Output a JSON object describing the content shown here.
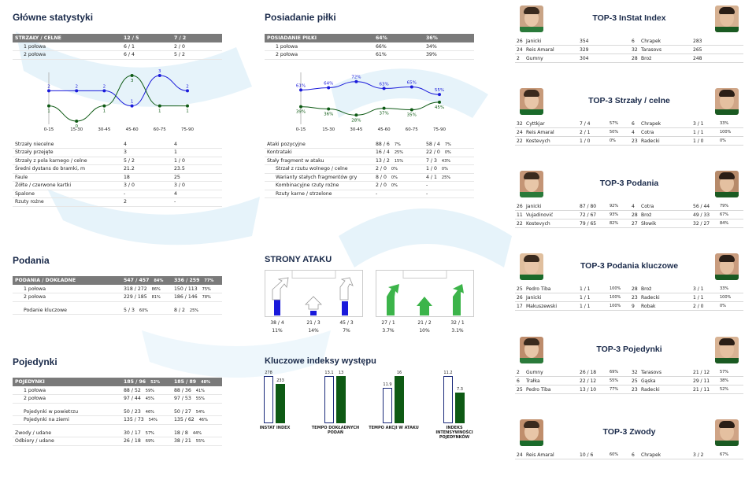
{
  "colors": {
    "header": "#7a7a7a",
    "blue": "#1a1adb",
    "green": "#0e5a14",
    "title": "#1a2a4a",
    "bg_shape": "#dff0f8"
  },
  "main": {
    "title": "Główne statystyki",
    "head": [
      "STRZAŁY / CELNE",
      "12 / 5",
      "7 / 2"
    ],
    "rows": [
      [
        "1 połowa",
        "6 / 1",
        "2 / 0"
      ],
      [
        "2 połowa",
        "6 / 4",
        "5 / 2"
      ]
    ],
    "chart_x": [
      "0-15",
      "15-30",
      "30-45",
      "45-60",
      "60-75",
      "75-90"
    ],
    "rows2": [
      [
        "Strzały niecelne",
        "4",
        "4"
      ],
      [
        "Strzały przejęte",
        "3",
        "1"
      ],
      [
        "Strzały z pola karnego / celne",
        "5 / 2",
        "1 / 0"
      ],
      [
        "Średni dystans do bramki, m",
        "21.2",
        "23.5"
      ],
      [
        "Faule",
        "18",
        "25"
      ],
      [
        "Żółte / czerwone kartki",
        "3 / 0",
        "3 / 0"
      ],
      [
        "Spalone",
        "-",
        "4"
      ],
      [
        "Rzuty rożne",
        "2",
        "-"
      ]
    ]
  },
  "posiadanie": {
    "title": "Posiadanie piłki",
    "head": [
      "POSIADANIE PIŁKI",
      "64%",
      "36%"
    ],
    "rows": [
      [
        "1 połowa",
        "66%",
        "34%"
      ],
      [
        "2 połowa",
        "61%",
        "39%"
      ]
    ],
    "chart_x": [
      "0-15",
      "15-30",
      "30-45",
      "45-60",
      "60-75",
      "75-90"
    ],
    "rows2": [
      [
        "Ataki pozycyjne",
        "88 / 6",
        "7%",
        "58 / 4",
        "7%"
      ],
      [
        "Kontrataki",
        "16 / 4",
        "25%",
        "22 / 0",
        "0%"
      ],
      [
        "Stały fragment w ataku",
        "13 / 2",
        "15%",
        "7 / 3",
        "43%"
      ],
      [
        "Strzał z rzutu wolnego / celne",
        "2 / 0",
        "0%",
        "1 / 0",
        "0%"
      ],
      [
        "Warianty stałych fragmentów gry",
        "8 / 0",
        "0%",
        "4 / 1",
        "25%"
      ],
      [
        "Kombinacyjne rzuty rożne",
        "2 / 0",
        "0%",
        "-",
        ""
      ],
      [
        "Rzuty karne / strzelone",
        "-",
        "",
        "-",
        ""
      ]
    ]
  },
  "podania": {
    "title": "Podania",
    "head": [
      "PODANIA / DOKŁADNE",
      "547 / 457",
      "84%",
      "336 / 259",
      "77%"
    ],
    "rows": [
      [
        "1 połowa",
        "318 / 272",
        "86%",
        "150 / 113",
        "75%"
      ],
      [
        "2 połowa",
        "229 / 185",
        "81%",
        "186 / 146",
        "78%"
      ],
      [
        "Podanie kluczowe",
        "5 / 3",
        "60%",
        "8 / 2",
        "25%"
      ]
    ]
  },
  "pojedynki": {
    "title": "Pojedynki",
    "head": [
      "POJEDYNKI",
      "185 / 96",
      "52%",
      "185 / 89",
      "48%"
    ],
    "rows": [
      [
        "1 połowa",
        "88 / 52",
        "59%",
        "88 / 36",
        "41%"
      ],
      [
        "2 połowa",
        "97 / 44",
        "45%",
        "97 / 53",
        "55%"
      ],
      [
        "Pojedynki w powietrzu",
        "50 / 23",
        "46%",
        "50 / 27",
        "54%"
      ],
      [
        "Pojedynki na ziemi",
        "135 / 73",
        "54%",
        "135 / 62",
        "46%"
      ],
      [
        "Zwody / udane",
        "30 / 17",
        "57%",
        "18 / 8",
        "44%"
      ],
      [
        "Odbiory / udane",
        "26 / 18",
        "69%",
        "38 / 21",
        "55%"
      ]
    ]
  },
  "strony": {
    "title": "STRONY ATAKU",
    "left": [
      [
        "38 / 4",
        "11%"
      ],
      [
        "21 / 3",
        "14%"
      ],
      [
        "45 / 3",
        "7%"
      ]
    ],
    "right": [
      [
        "27 / 1",
        "3.7%"
      ],
      [
        "21 / 2",
        "10%"
      ],
      [
        "32 / 1",
        "3.1%"
      ]
    ]
  },
  "kluczowe": {
    "title": "Kluczowe indeksy występu",
    "items": [
      {
        "label": "INSTAT INDEX",
        "a": "278",
        "b": "233"
      },
      {
        "label": "TEMPO DOKŁADNYCH PODAŃ",
        "a": "13.1",
        "b": "13"
      },
      {
        "label": "TEMPO AKCJI W ATAKU",
        "a": "11.9",
        "b": "16"
      },
      {
        "label": "INDEKS INTENSYWNOŚCI POJEDYNKÓW",
        "a": "11.2",
        "b": "7.3"
      }
    ]
  },
  "tops": [
    {
      "title": "TOP-3 InStat Index",
      "l": [
        [
          "26",
          "Janicki",
          "354",
          ""
        ],
        [
          "24",
          "Reis Amaral",
          "329",
          ""
        ],
        [
          "2",
          "Gumny",
          "304",
          ""
        ]
      ],
      "r": [
        [
          "6",
          "Chrapek",
          "283",
          ""
        ],
        [
          "32",
          "Tarasovs",
          "265",
          ""
        ],
        [
          "28",
          "Broż",
          "248",
          ""
        ]
      ]
    },
    {
      "title": "TOP-3 Strzały / celne",
      "l": [
        [
          "32",
          "Cyttkjar",
          "7 / 4",
          "57%"
        ],
        [
          "24",
          "Reis Amaral",
          "2 / 1",
          "50%"
        ],
        [
          "22",
          "Kostevych",
          "1 / 0",
          "0%"
        ]
      ],
      "r": [
        [
          "6",
          "Chrapek",
          "3 / 1",
          "33%"
        ],
        [
          "4",
          "Cotra",
          "1 / 1",
          "100%"
        ],
        [
          "23",
          "Radecki",
          "1 / 0",
          "0%"
        ]
      ]
    },
    {
      "title": "TOP-3 Podania",
      "l": [
        [
          "26",
          "Janicki",
          "87 / 80",
          "92%"
        ],
        [
          "11",
          "Vujadinović",
          "72 / 67",
          "93%"
        ],
        [
          "22",
          "Kostevych",
          "79 / 65",
          "82%"
        ]
      ],
      "r": [
        [
          "4",
          "Cotra",
          "56 / 44",
          "79%"
        ],
        [
          "28",
          "Broż",
          "49 / 33",
          "67%"
        ],
        [
          "27",
          "Słowik",
          "32 / 27",
          "84%"
        ]
      ]
    },
    {
      "title": "TOP-3 Podania kluczowe",
      "l": [
        [
          "25",
          "Pedro Tiba",
          "1 / 1",
          "100%"
        ],
        [
          "26",
          "Janicki",
          "1 / 1",
          "100%"
        ],
        [
          "17",
          "Makuszewski",
          "1 / 1",
          "100%"
        ]
      ],
      "r": [
        [
          "28",
          "Broż",
          "3 / 1",
          "33%"
        ],
        [
          "23",
          "Radecki",
          "1 / 1",
          "100%"
        ],
        [
          "9",
          "Robak",
          "2 / 0",
          "0%"
        ]
      ]
    },
    {
      "title": "TOP-3 Pojedynki",
      "l": [
        [
          "2",
          "Gumny",
          "26 / 18",
          "69%"
        ],
        [
          "6",
          "Trałka",
          "22 / 12",
          "55%"
        ],
        [
          "25",
          "Pedro Tiba",
          "13 / 10",
          "77%"
        ]
      ],
      "r": [
        [
          "32",
          "Tarasovs",
          "21 / 12",
          "57%"
        ],
        [
          "25",
          "Gąska",
          "29 / 11",
          "38%"
        ],
        [
          "23",
          "Radecki",
          "21 / 11",
          "52%"
        ]
      ]
    },
    {
      "title": "TOP-3 Zwody",
      "l": [
        [
          "24",
          "Reis Amaral",
          "10 / 6",
          "60%"
        ]
      ],
      "r": [
        [
          "6",
          "Chrapek",
          "3 / 2",
          "67%"
        ]
      ]
    }
  ],
  "chart_data": [
    {
      "type": "line",
      "x": [
        "0-15",
        "15-30",
        "30-45",
        "45-60",
        "60-75",
        "75-90"
      ],
      "series": [
        {
          "values": [
            2,
            2,
            2,
            1,
            3,
            2
          ]
        },
        {
          "values": [
            1,
            0,
            1,
            3,
            1,
            1
          ]
        }
      ]
    },
    {
      "type": "line",
      "x": [
        "0-15",
        "15-30",
        "30-45",
        "45-60",
        "60-75",
        "75-90"
      ],
      "series": [
        {
          "values": [
            61,
            64,
            72,
            63,
            65,
            55
          ]
        },
        {
          "values": [
            39,
            36,
            28,
            37,
            35,
            45
          ]
        }
      ]
    },
    {
      "type": "bar",
      "categories": [
        "INSTAT INDEX",
        "TEMPO DOKŁADNYCH PODAŃ",
        "TEMPO AKCJI W ATAKU",
        "INDEKS INTENSYWNOŚCI POJEDYNKÓW"
      ],
      "series": [
        {
          "values": [
            278,
            13.1,
            11.9,
            11.2
          ]
        },
        {
          "values": [
            233,
            13,
            16,
            7.3
          ]
        }
      ]
    }
  ]
}
